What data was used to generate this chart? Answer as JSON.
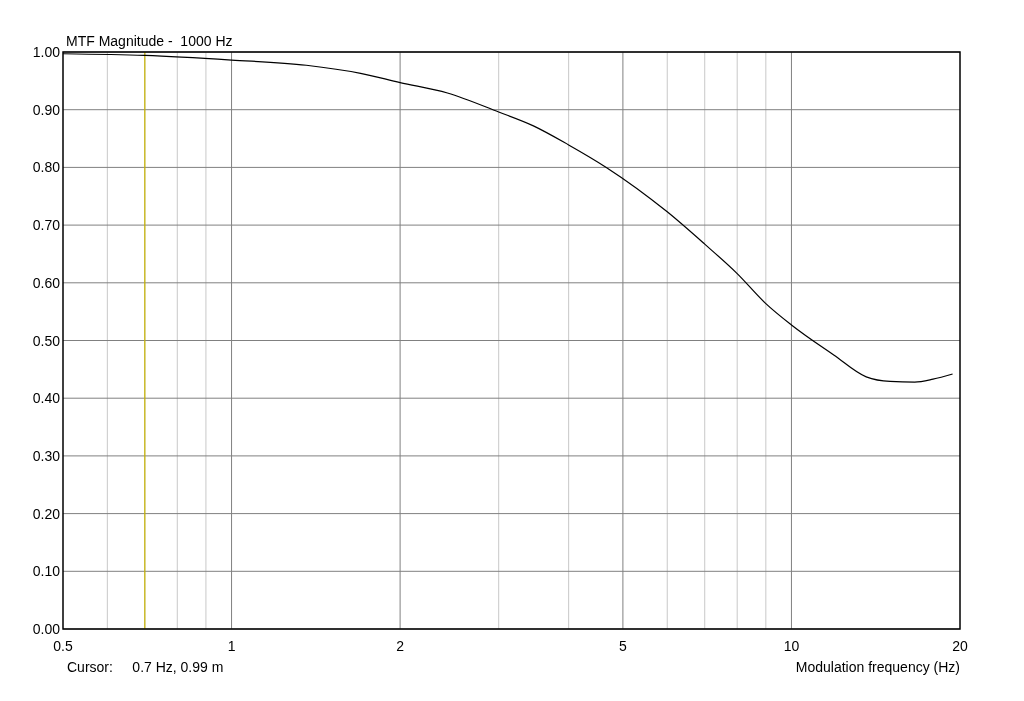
{
  "chart_data": {
    "type": "line",
    "title": "MTF Magnitude -  1000 Hz",
    "xlabel": "Modulation frequency (Hz)",
    "x": [
      0.5,
      0.7,
      1.0,
      1.36,
      1.7,
      2.0,
      2.43,
      3.0,
      3.46,
      4.0,
      4.67,
      6.0,
      7.0,
      8.0,
      9.0,
      10.0,
      11.9,
      13.6,
      15.0,
      16.6,
      17.9,
      19.4
    ],
    "series": [
      {
        "color": "#000000",
        "values": [
          0.997,
          0.994,
          0.986,
          0.977,
          0.963,
          0.947,
          0.929,
          0.896,
          0.872,
          0.839,
          0.8,
          0.723,
          0.667,
          0.616,
          0.564,
          0.527,
          0.475,
          0.437,
          0.429,
          0.428,
          0.433,
          0.442
        ]
      }
    ],
    "log": "x",
    "xlim": [
      0.5,
      20
    ],
    "xticks": [
      0.5,
      1,
      2,
      5,
      10,
      20
    ],
    "ylim": [
      0,
      1
    ],
    "yticks": [
      {
        "value": 0,
        "label": "0.00"
      },
      {
        "value": 0.1,
        "label": "0.10"
      },
      {
        "value": 0.2,
        "label": "0.20"
      },
      {
        "value": 0.3,
        "label": "0.30"
      },
      {
        "value": 0.4,
        "label": "0.40"
      },
      {
        "value": 0.5,
        "label": "0.50"
      },
      {
        "value": 0.6,
        "label": "0.60"
      },
      {
        "value": 0.7,
        "label": "0.70"
      },
      {
        "value": 0.8,
        "label": "0.80"
      },
      {
        "value": 0.9,
        "label": "0.90"
      },
      {
        "value": 1,
        "label": "1.00"
      }
    ],
    "grid": true,
    "ref_lines": [
      {
        "axis": "x",
        "value": 0.7,
        "color": "#c8b400"
      }
    ],
    "annotations": [
      "Cursor:     0.7 Hz, 0.99 m"
    ]
  }
}
